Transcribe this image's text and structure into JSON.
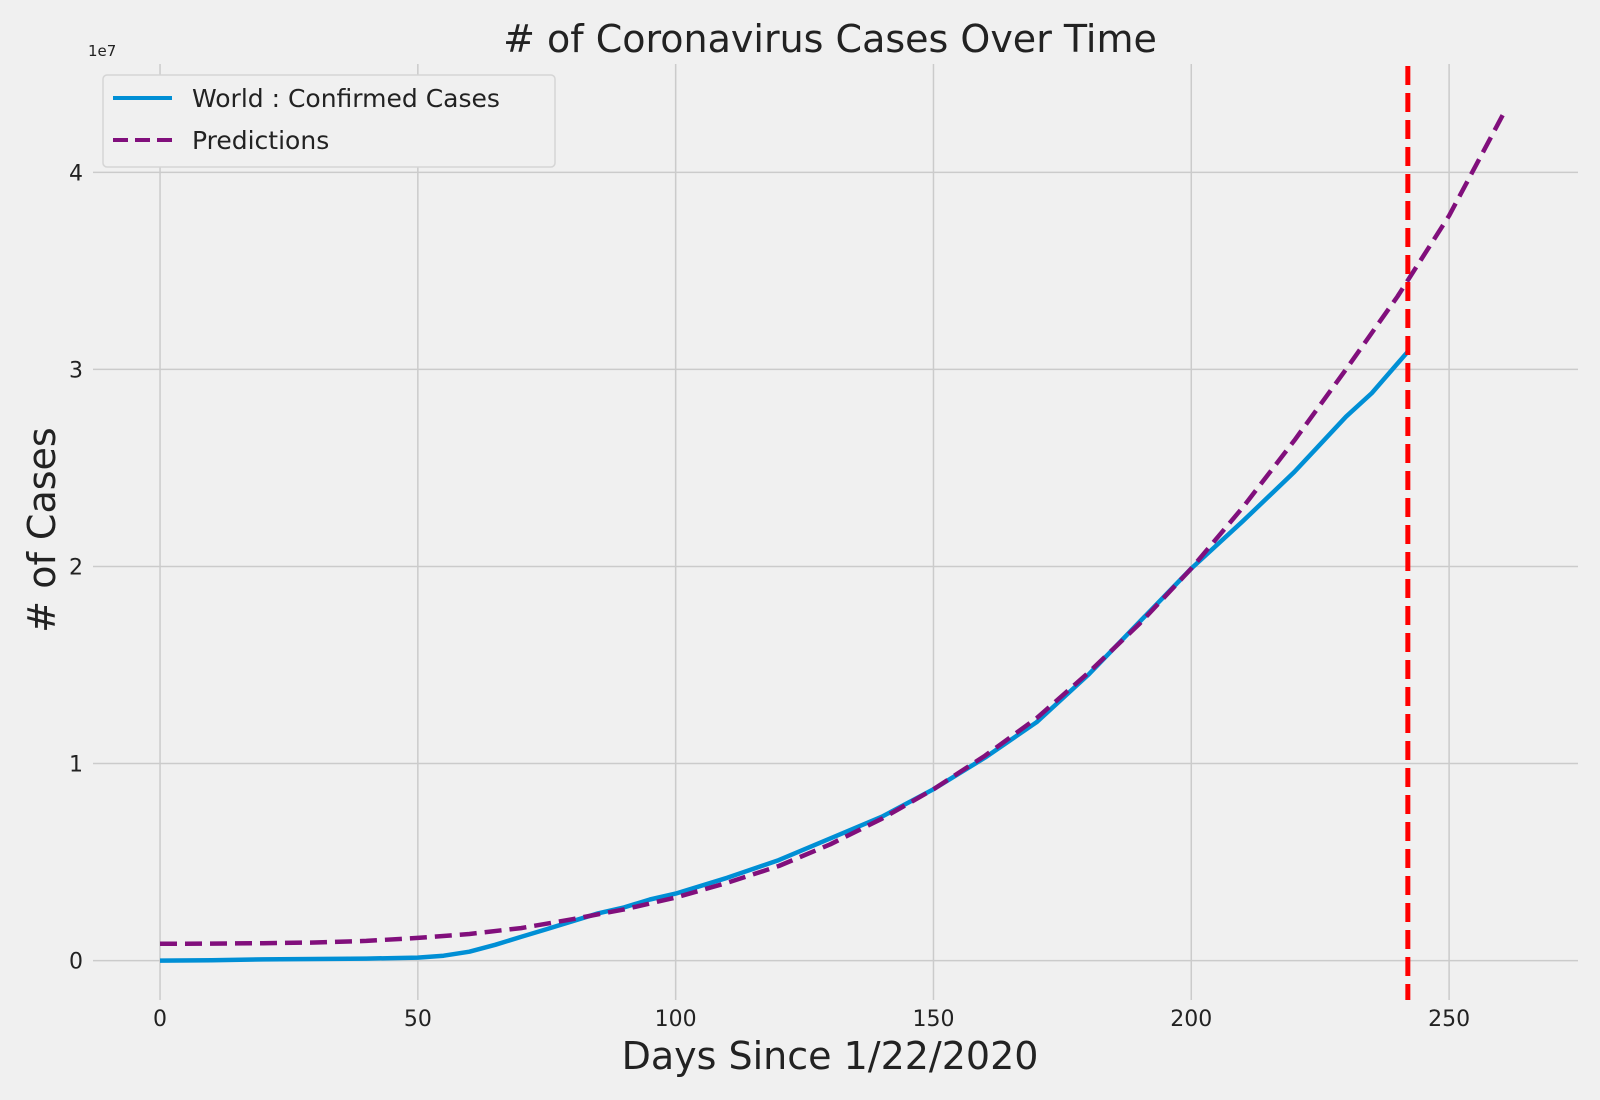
{
  "chart_data": {
    "type": "line",
    "title": "# of Coronavirus Cases Over Time",
    "xlabel": "Days Since 1/22/2020",
    "ylabel": "# of Cases",
    "y_multiplier_label": "1e7",
    "xlim": [
      -13,
      275
    ],
    "ylim": [
      -2000000,
      45500000
    ],
    "xticks": [
      0,
      50,
      100,
      150,
      200,
      250
    ],
    "yticks": [
      0,
      10000000,
      20000000,
      30000000,
      40000000
    ],
    "ytick_labels": [
      "0",
      "1",
      "2",
      "3",
      "4"
    ],
    "grid": true,
    "legend_position": "upper-left",
    "series": [
      {
        "name": "World :  Confirmed Cases",
        "color": "#008fd5",
        "style": "solid",
        "x": [
          0,
          10,
          20,
          30,
          40,
          50,
          55,
          60,
          65,
          70,
          75,
          80,
          85,
          90,
          95,
          100,
          110,
          120,
          130,
          140,
          150,
          160,
          170,
          180,
          190,
          200,
          210,
          220,
          225,
          230,
          235,
          240,
          242
        ],
        "y": [
          0,
          20000,
          60000,
          80000,
          100000,
          150000,
          250000,
          450000,
          800000,
          1200000,
          1600000,
          2000000,
          2400000,
          2700000,
          3100000,
          3400000,
          4200000,
          5100000,
          6200000,
          7300000,
          8700000,
          10300000,
          12100000,
          14500000,
          17200000,
          19900000,
          22300000,
          24800000,
          26200000,
          27600000,
          28800000,
          30300000,
          30900000
        ]
      },
      {
        "name": "Predictions",
        "color": "#810f7c",
        "style": "dashed",
        "x": [
          0,
          10,
          20,
          30,
          40,
          50,
          60,
          70,
          80,
          90,
          100,
          110,
          120,
          130,
          140,
          150,
          160,
          170,
          180,
          190,
          200,
          210,
          220,
          230,
          240,
          250,
          261
        ],
        "y": [
          850000,
          860000,
          880000,
          920000,
          1000000,
          1150000,
          1350000,
          1650000,
          2100000,
          2600000,
          3200000,
          3950000,
          4800000,
          5900000,
          7200000,
          8700000,
          10400000,
          12300000,
          14600000,
          17100000,
          19900000,
          23000000,
          26400000,
          30000000,
          33700000,
          37800000,
          43200000
        ]
      }
    ],
    "reference_lines": [
      {
        "orientation": "vertical",
        "x": 242,
        "color": "#ff0000",
        "style": "dashed"
      }
    ]
  }
}
